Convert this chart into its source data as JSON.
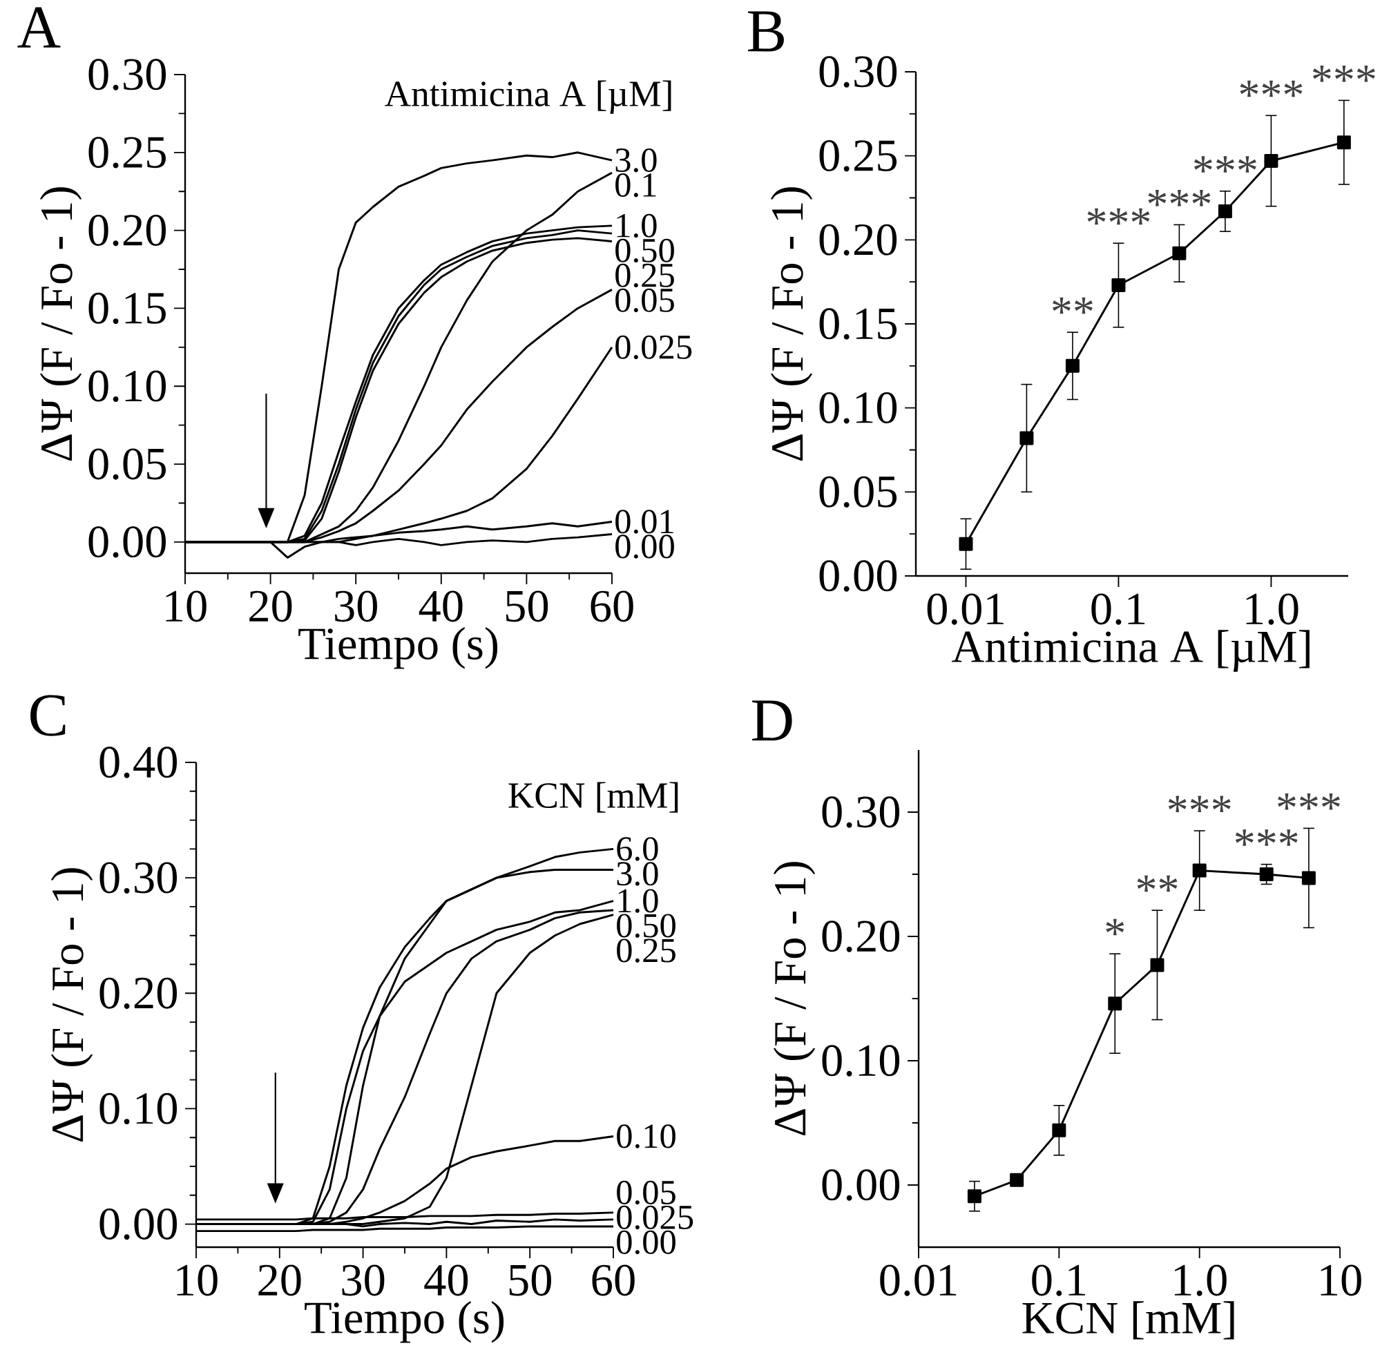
{
  "chart_data": [
    {
      "type": "line",
      "title": "A",
      "xlabel": "Tiempo (s)",
      "ylabel": "ΔΨ (F / Fo - 1)",
      "legend_title": "Antimicina A [µM]",
      "xlim": [
        10,
        60
      ],
      "xticks": [
        10,
        20,
        30,
        40,
        50,
        60
      ],
      "ylim": [
        -0.02,
        0.3
      ],
      "yticks": [
        {
          "value": 0,
          "label": "0.00"
        },
        0.05,
        {
          "value": 0.1,
          "label": "0.10"
        },
        0.15,
        {
          "value": 0.2,
          "label": "0.20"
        },
        0.25,
        {
          "value": 0.3,
          "label": "0.30"
        }
      ],
      "x": [
        10,
        20,
        22,
        24,
        26,
        28,
        30,
        32,
        35,
        38,
        40,
        43,
        46,
        50,
        53,
        56,
        60
      ],
      "series": [
        {
          "name": "3.0",
          "color": "#000000",
          "values": [
            0,
            0,
            0,
            0.03,
            0.1,
            0.175,
            0.205,
            0.215,
            0.228,
            0.235,
            0.24,
            0.243,
            0.245,
            0.248,
            0.247,
            0.25,
            0.245
          ]
        },
        {
          "name": "0.1",
          "color": "#000000",
          "values": [
            0,
            0,
            0,
            0,
            0.005,
            0.01,
            0.02,
            0.035,
            0.065,
            0.1,
            0.125,
            0.155,
            0.18,
            0.2,
            0.21,
            0.225,
            0.237
          ]
        },
        {
          "name": "1.0",
          "color": "#000000",
          "values": [
            0,
            0,
            0,
            0.004,
            0.025,
            0.058,
            0.09,
            0.12,
            0.15,
            0.168,
            0.178,
            0.186,
            0.193,
            0.198,
            0.2,
            0.202,
            0.203
          ]
        },
        {
          "name": "0.50",
          "color": "#000000",
          "values": [
            0,
            0,
            0,
            0.002,
            0.02,
            0.05,
            0.085,
            0.115,
            0.145,
            0.165,
            0.175,
            0.183,
            0.19,
            0.195,
            0.197,
            0.2,
            0.198
          ]
        },
        {
          "name": "0.25",
          "color": "#000000",
          "values": [
            0,
            0,
            0,
            0.001,
            0.015,
            0.045,
            0.08,
            0.11,
            0.14,
            0.16,
            0.17,
            0.18,
            0.187,
            0.192,
            0.194,
            0.195,
            0.193
          ]
        },
        {
          "name": "0.05",
          "color": "#000000",
          "values": [
            0,
            0,
            0,
            0,
            0.003,
            0.007,
            0.012,
            0.02,
            0.033,
            0.05,
            0.062,
            0.085,
            0.103,
            0.125,
            0.138,
            0.15,
            0.162
          ]
        },
        {
          "name": "0.025",
          "color": "#000000",
          "values": [
            0,
            0,
            0,
            0,
            0,
            0,
            0.002,
            0.004,
            0.008,
            0.012,
            0.015,
            0.02,
            0.028,
            0.047,
            0.068,
            0.092,
            0.125
          ]
        },
        {
          "name": "0.01",
          "color": "#000000",
          "values": [
            0,
            0,
            0,
            0,
            0,
            0.002,
            0.003,
            0.004,
            0.006,
            0.007,
            0.008,
            0.01,
            0.008,
            0.01,
            0.012,
            0.01,
            0.013
          ]
        },
        {
          "name": "0.00",
          "color": "#000000",
          "values": [
            0,
            0,
            -0.01,
            -0.003,
            0,
            0,
            -0.002,
            0,
            0.002,
            0,
            -0.002,
            0,
            0.001,
            0,
            0.002,
            0.003,
            0.005
          ]
        }
      ]
    },
    {
      "type": "line",
      "title": "B",
      "xlabel": "Antimicina A [µM]",
      "ylabel": "ΔΨ (F / Fo - 1)",
      "log": "x",
      "marker": "square",
      "color": "#000000",
      "xlim": [
        0.0047,
        3.2
      ],
      "xticks": [
        0.01,
        0.1,
        {
          "value": 1,
          "label": "1.0"
        }
      ],
      "ylim": [
        0,
        0.3
      ],
      "yticks": [
        {
          "value": 0,
          "label": "0.00"
        },
        0.05,
        {
          "value": 0.1,
          "label": "0.10"
        },
        0.15,
        {
          "value": 0.2,
          "label": "0.20"
        },
        0.25,
        {
          "value": 0.3,
          "label": "0.30"
        }
      ],
      "x": [
        0.01,
        0.025,
        0.05,
        0.1,
        0.25,
        0.5,
        1.0,
        3.0
      ],
      "values": [
        0.019,
        0.082,
        0.125,
        0.173,
        0.192,
        0.217,
        0.247,
        0.258
      ],
      "errors": [
        0.015,
        0.032,
        0.02,
        0.025,
        0.017,
        0.012,
        0.027,
        0.025
      ],
      "value_labels": [
        null,
        null,
        "**",
        "***",
        "***",
        "***",
        "***",
        "***"
      ]
    },
    {
      "type": "line",
      "title": "C",
      "xlabel": "Tiempo (s)",
      "ylabel": "ΔΨ (F / Fo - 1)",
      "legend_title": "KCN [mM]",
      "xlim": [
        10,
        60
      ],
      "xticks": [
        10,
        20,
        30,
        40,
        50,
        60
      ],
      "ylim": [
        -0.02,
        0.4
      ],
      "yticks": [
        {
          "value": 0,
          "label": "0.00"
        },
        {
          "value": 0.1,
          "label": "0.10"
        },
        {
          "value": 0.2,
          "label": "0.20"
        },
        {
          "value": 0.3,
          "label": "0.30"
        },
        {
          "value": 0.4,
          "label": "0.40"
        }
      ],
      "x": [
        10,
        20,
        22,
        24,
        26,
        28,
        30,
        32,
        35,
        38,
        40,
        43,
        46,
        50,
        53,
        56,
        60
      ],
      "series": [
        {
          "name": "6.0",
          "color": "#000000",
          "values": [
            0,
            0,
            0,
            0.005,
            0.05,
            0.12,
            0.17,
            0.205,
            0.24,
            0.265,
            0.28,
            0.29,
            0.3,
            0.31,
            0.318,
            0.322,
            0.325
          ]
        },
        {
          "name": "3.0",
          "color": "#000000",
          "values": [
            0,
            0,
            0,
            0,
            0.005,
            0.04,
            0.12,
            0.18,
            0.23,
            0.26,
            0.28,
            0.29,
            0.3,
            0.305,
            0.307,
            0.307,
            0.307
          ]
        },
        {
          "name": "1.0",
          "color": "#000000",
          "values": [
            0,
            0,
            0,
            0.002,
            0.03,
            0.1,
            0.15,
            0.18,
            0.21,
            0.225,
            0.235,
            0.245,
            0.255,
            0.262,
            0.27,
            0.272,
            0.28
          ]
        },
        {
          "name": "0.50",
          "color": "#000000",
          "values": [
            0,
            0,
            0,
            0,
            0.002,
            0.01,
            0.03,
            0.065,
            0.11,
            0.165,
            0.2,
            0.23,
            0.245,
            0.255,
            0.265,
            0.27,
            0.272
          ]
        },
        {
          "name": "0.25",
          "color": "#000000",
          "values": [
            0,
            0,
            0,
            0,
            0,
            0,
            0,
            0.002,
            0.005,
            0.015,
            0.04,
            0.12,
            0.2,
            0.235,
            0.25,
            0.26,
            0.268
          ]
        },
        {
          "name": "0.10",
          "color": "#000000",
          "values": [
            0,
            0,
            0,
            0,
            0,
            0.002,
            0.005,
            0.01,
            0.02,
            0.035,
            0.048,
            0.058,
            0.063,
            0.068,
            0.072,
            0.072,
            0.076
          ]
        },
        {
          "name": "0.05",
          "color": "#000000",
          "values": [
            0.004,
            0.004,
            0.004,
            0.005,
            0.005,
            0.005,
            0.006,
            0.006,
            0.006,
            0.007,
            0.007,
            0.007,
            0.008,
            0.008,
            0.009,
            0.009,
            0.01
          ]
        },
        {
          "name": "0.025",
          "color": "#000000",
          "values": [
            0,
            0,
            0,
            0,
            0,
            0,
            -0.002,
            0,
            0.001,
            0,
            0.002,
            0,
            0.003,
            0.002,
            0.004,
            0.003,
            0.004
          ]
        },
        {
          "name": "0.00",
          "color": "#000000",
          "values": [
            -0.006,
            -0.006,
            -0.006,
            -0.005,
            -0.005,
            -0.005,
            -0.005,
            -0.004,
            -0.004,
            -0.004,
            -0.003,
            -0.003,
            -0.003,
            -0.002,
            -0.002,
            -0.002,
            -0.002
          ]
        }
      ]
    },
    {
      "type": "line",
      "title": "D",
      "xlabel": "KCN [mM]",
      "ylabel": "ΔΨ (F / Fo - 1)",
      "log": "x",
      "marker": "square",
      "color": "#000000",
      "xlim": [
        0.01,
        10
      ],
      "xticks": [
        0.01,
        0.1,
        {
          "value": 1,
          "label": "1.0"
        },
        10
      ],
      "ylim": [
        -0.05,
        0.35
      ],
      "yticks": [
        {
          "value": 0,
          "label": "0.00"
        },
        {
          "value": 0.1,
          "label": "0.10"
        },
        {
          "value": 0.2,
          "label": "0.20"
        },
        {
          "value": 0.3,
          "label": "0.30"
        }
      ],
      "x": [
        0.025,
        0.05,
        0.1,
        0.25,
        0.5,
        1.0,
        3.0,
        6.0
      ],
      "values": [
        -0.009,
        0.004,
        0.044,
        0.146,
        0.177,
        0.253,
        0.25,
        0.247
      ],
      "errors": [
        0.012,
        0.003,
        0.02,
        0.04,
        0.044,
        0.032,
        0.008,
        0.04
      ],
      "value_labels": [
        null,
        null,
        null,
        "*",
        "**",
        "***",
        "***",
        "***"
      ]
    }
  ]
}
